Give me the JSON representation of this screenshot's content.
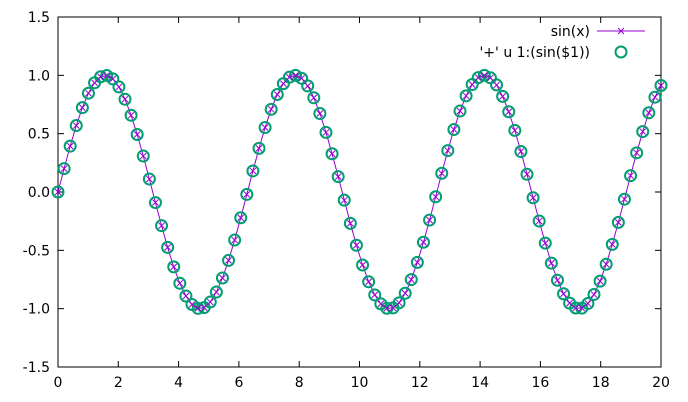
{
  "chart_data": {
    "type": "line",
    "title": "",
    "xlabel": "",
    "ylabel": "",
    "xlim": [
      0,
      20
    ],
    "ylim": [
      -1.5,
      1.5
    ],
    "grid": false,
    "legend_position": "top-right",
    "x_ticks": [
      "0",
      "2",
      "4",
      "6",
      "8",
      "10",
      "12",
      "14",
      "16",
      "18",
      "20"
    ],
    "y_ticks": [
      "1.5",
      "1.0",
      "0.5",
      "0.0",
      "-0.5",
      "-1.0",
      "-1.5"
    ],
    "x_tick_values": [
      0,
      2,
      4,
      6,
      8,
      10,
      12,
      14,
      16,
      18,
      20
    ],
    "y_tick_values": [
      1.5,
      1.0,
      0.5,
      0.0,
      -0.5,
      -1.0,
      -1.5
    ],
    "series": [
      {
        "name": "sin(x)",
        "color": "#9400d3",
        "marker": "x",
        "function": "sin(x)",
        "x_start": 0,
        "x_end": 20,
        "samples": 100
      },
      {
        "name": "'+' u 1:(sin($1))",
        "color": "#009e73",
        "marker": "circle",
        "function": "sin(x)",
        "x_start": 0,
        "x_end": 20,
        "samples": 100
      }
    ]
  }
}
